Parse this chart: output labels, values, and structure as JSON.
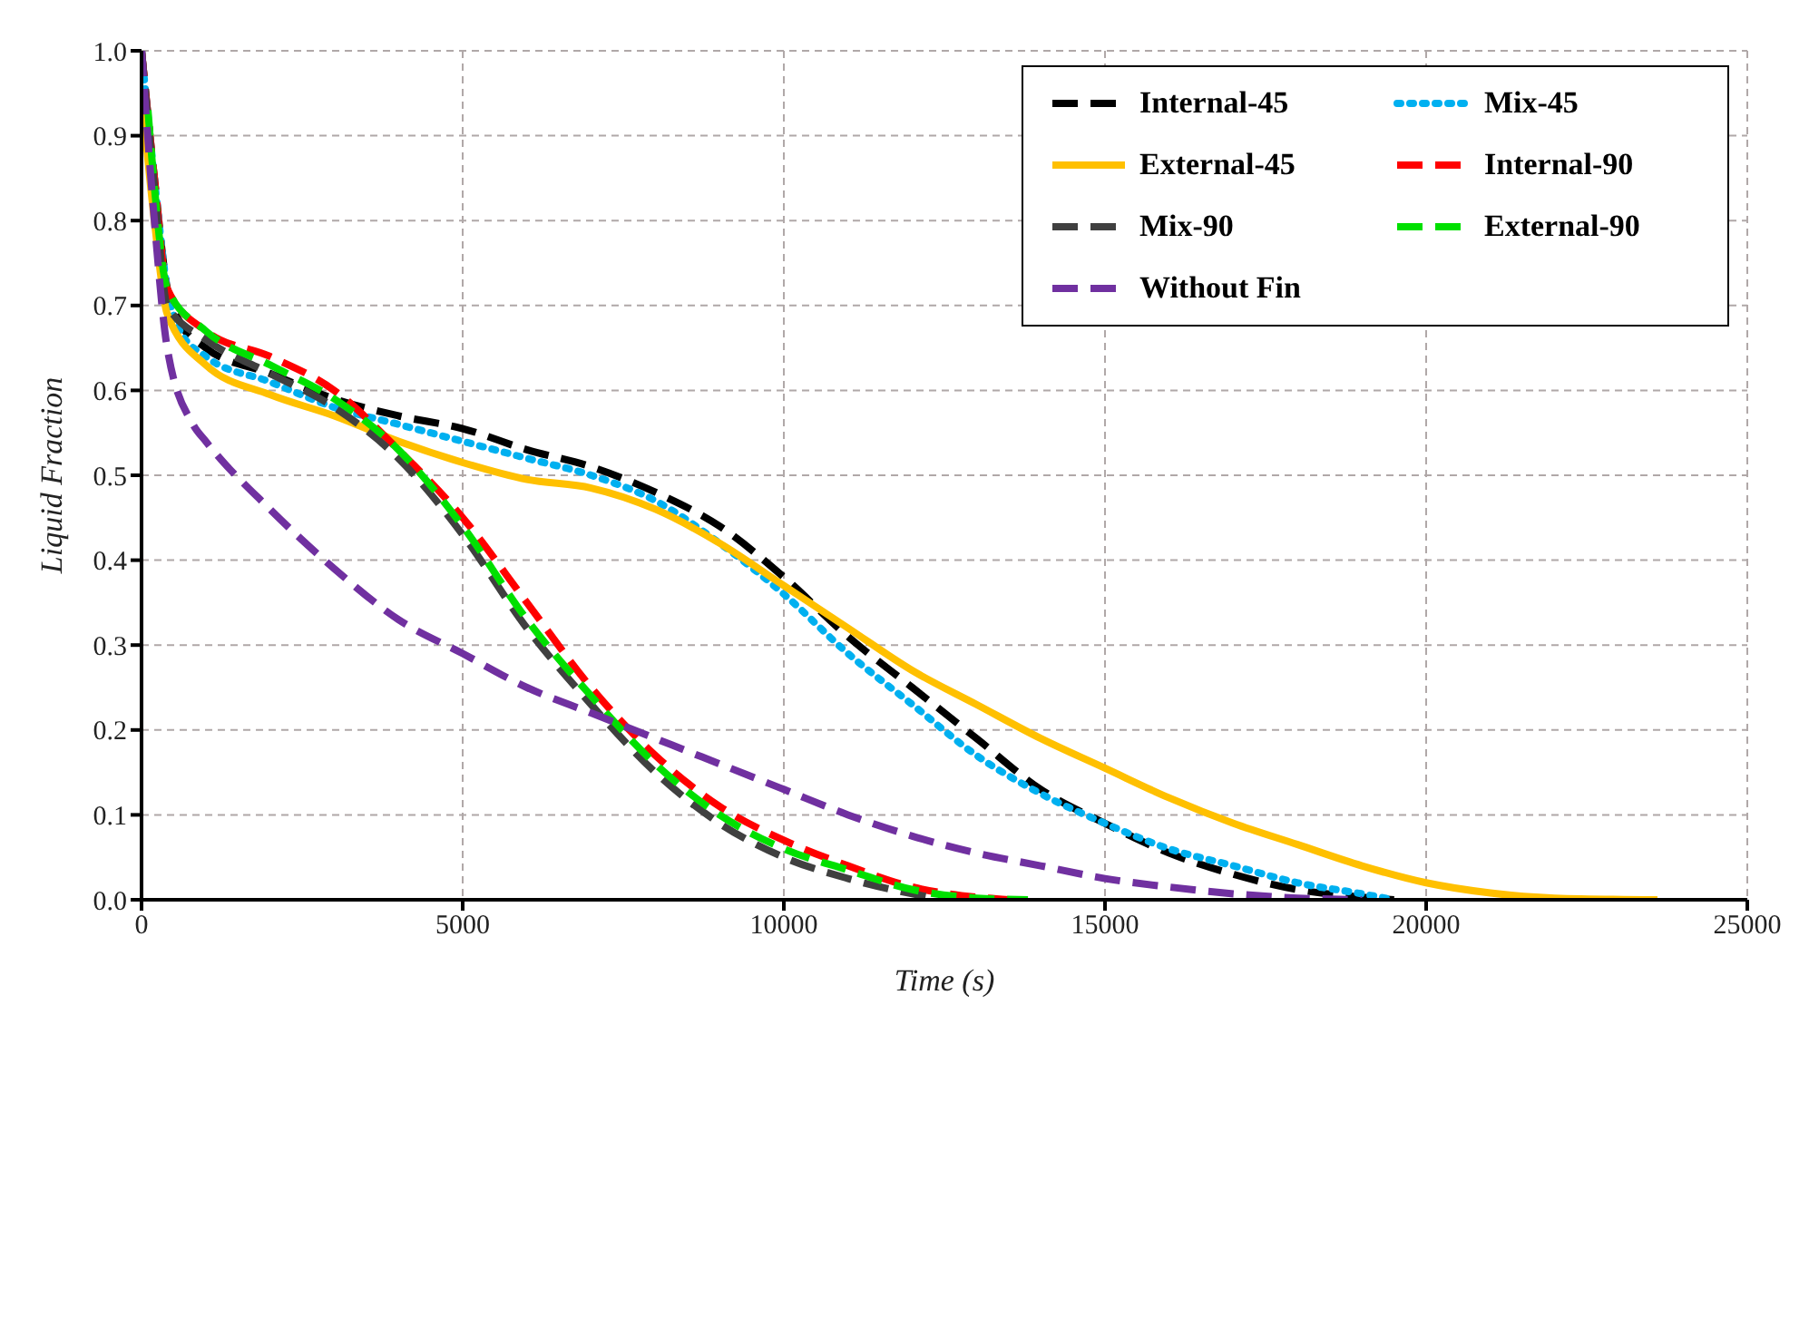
{
  "chart_data": {
    "type": "line",
    "xlabel": "Time (s)",
    "ylabel": "Liquid Fraction",
    "xlim": [
      0,
      25000
    ],
    "xticks": [
      0,
      5000,
      10000,
      15000,
      20000,
      25000
    ],
    "ylim": [
      0,
      1
    ],
    "yticks": [
      {
        "value": 0,
        "label": "0.0"
      },
      0.1,
      0.2,
      0.3,
      0.4,
      0.5,
      0.6,
      0.7,
      0.8,
      0.9,
      {
        "value": 1,
        "label": "1.0"
      }
    ],
    "grid": true,
    "legend": "top right",
    "marker": "none",
    "series": [
      {
        "name": "Internal-45",
        "color": "#000000",
        "line_style": "dashed",
        "x": [
          0,
          200,
          400,
          600,
          1000,
          2000,
          3000,
          4000,
          5000,
          6000,
          7000,
          8000,
          9000,
          10000,
          11000,
          12000,
          13000,
          14000,
          15000,
          16000,
          17000,
          18000,
          19000,
          19500
        ],
        "values": [
          1.0,
          0.85,
          0.72,
          0.68,
          0.65,
          0.62,
          0.59,
          0.57,
          0.555,
          0.53,
          0.51,
          0.48,
          0.44,
          0.38,
          0.31,
          0.25,
          0.19,
          0.13,
          0.09,
          0.055,
          0.03,
          0.012,
          0.003,
          0
        ]
      },
      {
        "name": "Mix-45",
        "color": "#00b0f0",
        "line_style": "dotted",
        "x": [
          0,
          200,
          400,
          600,
          1000,
          2000,
          3000,
          4000,
          5000,
          6000,
          7000,
          8000,
          9000,
          10000,
          11000,
          12000,
          13000,
          14000,
          15000,
          16000,
          17000,
          18000,
          19000,
          19500
        ],
        "values": [
          1.0,
          0.85,
          0.72,
          0.67,
          0.64,
          0.61,
          0.58,
          0.56,
          0.54,
          0.52,
          0.5,
          0.47,
          0.42,
          0.36,
          0.29,
          0.23,
          0.17,
          0.125,
          0.09,
          0.06,
          0.04,
          0.02,
          0.007,
          0
        ]
      },
      {
        "name": "External-45",
        "color": "#ffc000",
        "line_style": "solid",
        "x": [
          0,
          200,
          400,
          1000,
          2000,
          3000,
          4000,
          5000,
          6000,
          7000,
          8000,
          9000,
          10000,
          11000,
          12000,
          13000,
          14000,
          15000,
          16000,
          17000,
          18000,
          19000,
          20000,
          21000,
          22000,
          23600
        ],
        "values": [
          0.95,
          0.8,
          0.69,
          0.63,
          0.595,
          0.57,
          0.54,
          0.515,
          0.495,
          0.485,
          0.46,
          0.42,
          0.37,
          0.32,
          0.27,
          0.23,
          0.19,
          0.155,
          0.12,
          0.09,
          0.065,
          0.04,
          0.02,
          0.008,
          0.002,
          0
        ]
      },
      {
        "name": "Internal-90",
        "color": "#ff0000",
        "line_style": "dashed",
        "x": [
          0,
          200,
          400,
          1000,
          2000,
          3000,
          4000,
          5000,
          6000,
          7000,
          8000,
          9000,
          10000,
          11000,
          12000,
          13000,
          13500
        ],
        "values": [
          1.0,
          0.85,
          0.72,
          0.67,
          0.64,
          0.6,
          0.53,
          0.45,
          0.35,
          0.25,
          0.17,
          0.11,
          0.07,
          0.04,
          0.015,
          0.003,
          0
        ]
      },
      {
        "name": "Mix-90",
        "color": "#404040",
        "line_style": "dashed",
        "x": [
          0,
          200,
          400,
          1000,
          2000,
          3000,
          4000,
          5000,
          6000,
          7000,
          8000,
          9000,
          10000,
          11000,
          12000,
          12500
        ],
        "values": [
          1.0,
          0.84,
          0.7,
          0.66,
          0.62,
          0.58,
          0.52,
          0.43,
          0.32,
          0.23,
          0.15,
          0.09,
          0.05,
          0.025,
          0.007,
          0
        ]
      },
      {
        "name": "External-90",
        "color": "#00e000",
        "line_style": "dashed",
        "x": [
          100,
          200,
          400,
          1000,
          2000,
          3000,
          4000,
          5000,
          6000,
          7000,
          8000,
          9000,
          10000,
          11000,
          12000,
          13000,
          13800
        ],
        "values": [
          0.93,
          0.84,
          0.72,
          0.67,
          0.63,
          0.59,
          0.53,
          0.44,
          0.33,
          0.24,
          0.16,
          0.1,
          0.06,
          0.035,
          0.012,
          0.002,
          0
        ]
      },
      {
        "name": "Without Fin",
        "color": "#7030a0",
        "line_style": "dashed",
        "x": [
          0,
          200,
          400,
          800,
          1000,
          2000,
          3000,
          4000,
          5000,
          6000,
          7000,
          8000,
          9000,
          10000,
          11000,
          12000,
          13000,
          14000,
          15000,
          16000,
          17000,
          18000,
          19000
        ],
        "values": [
          1.0,
          0.8,
          0.65,
          0.56,
          0.54,
          0.46,
          0.39,
          0.33,
          0.29,
          0.25,
          0.22,
          0.19,
          0.16,
          0.13,
          0.1,
          0.075,
          0.055,
          0.04,
          0.025,
          0.015,
          0.007,
          0.002,
          0
        ]
      }
    ]
  }
}
